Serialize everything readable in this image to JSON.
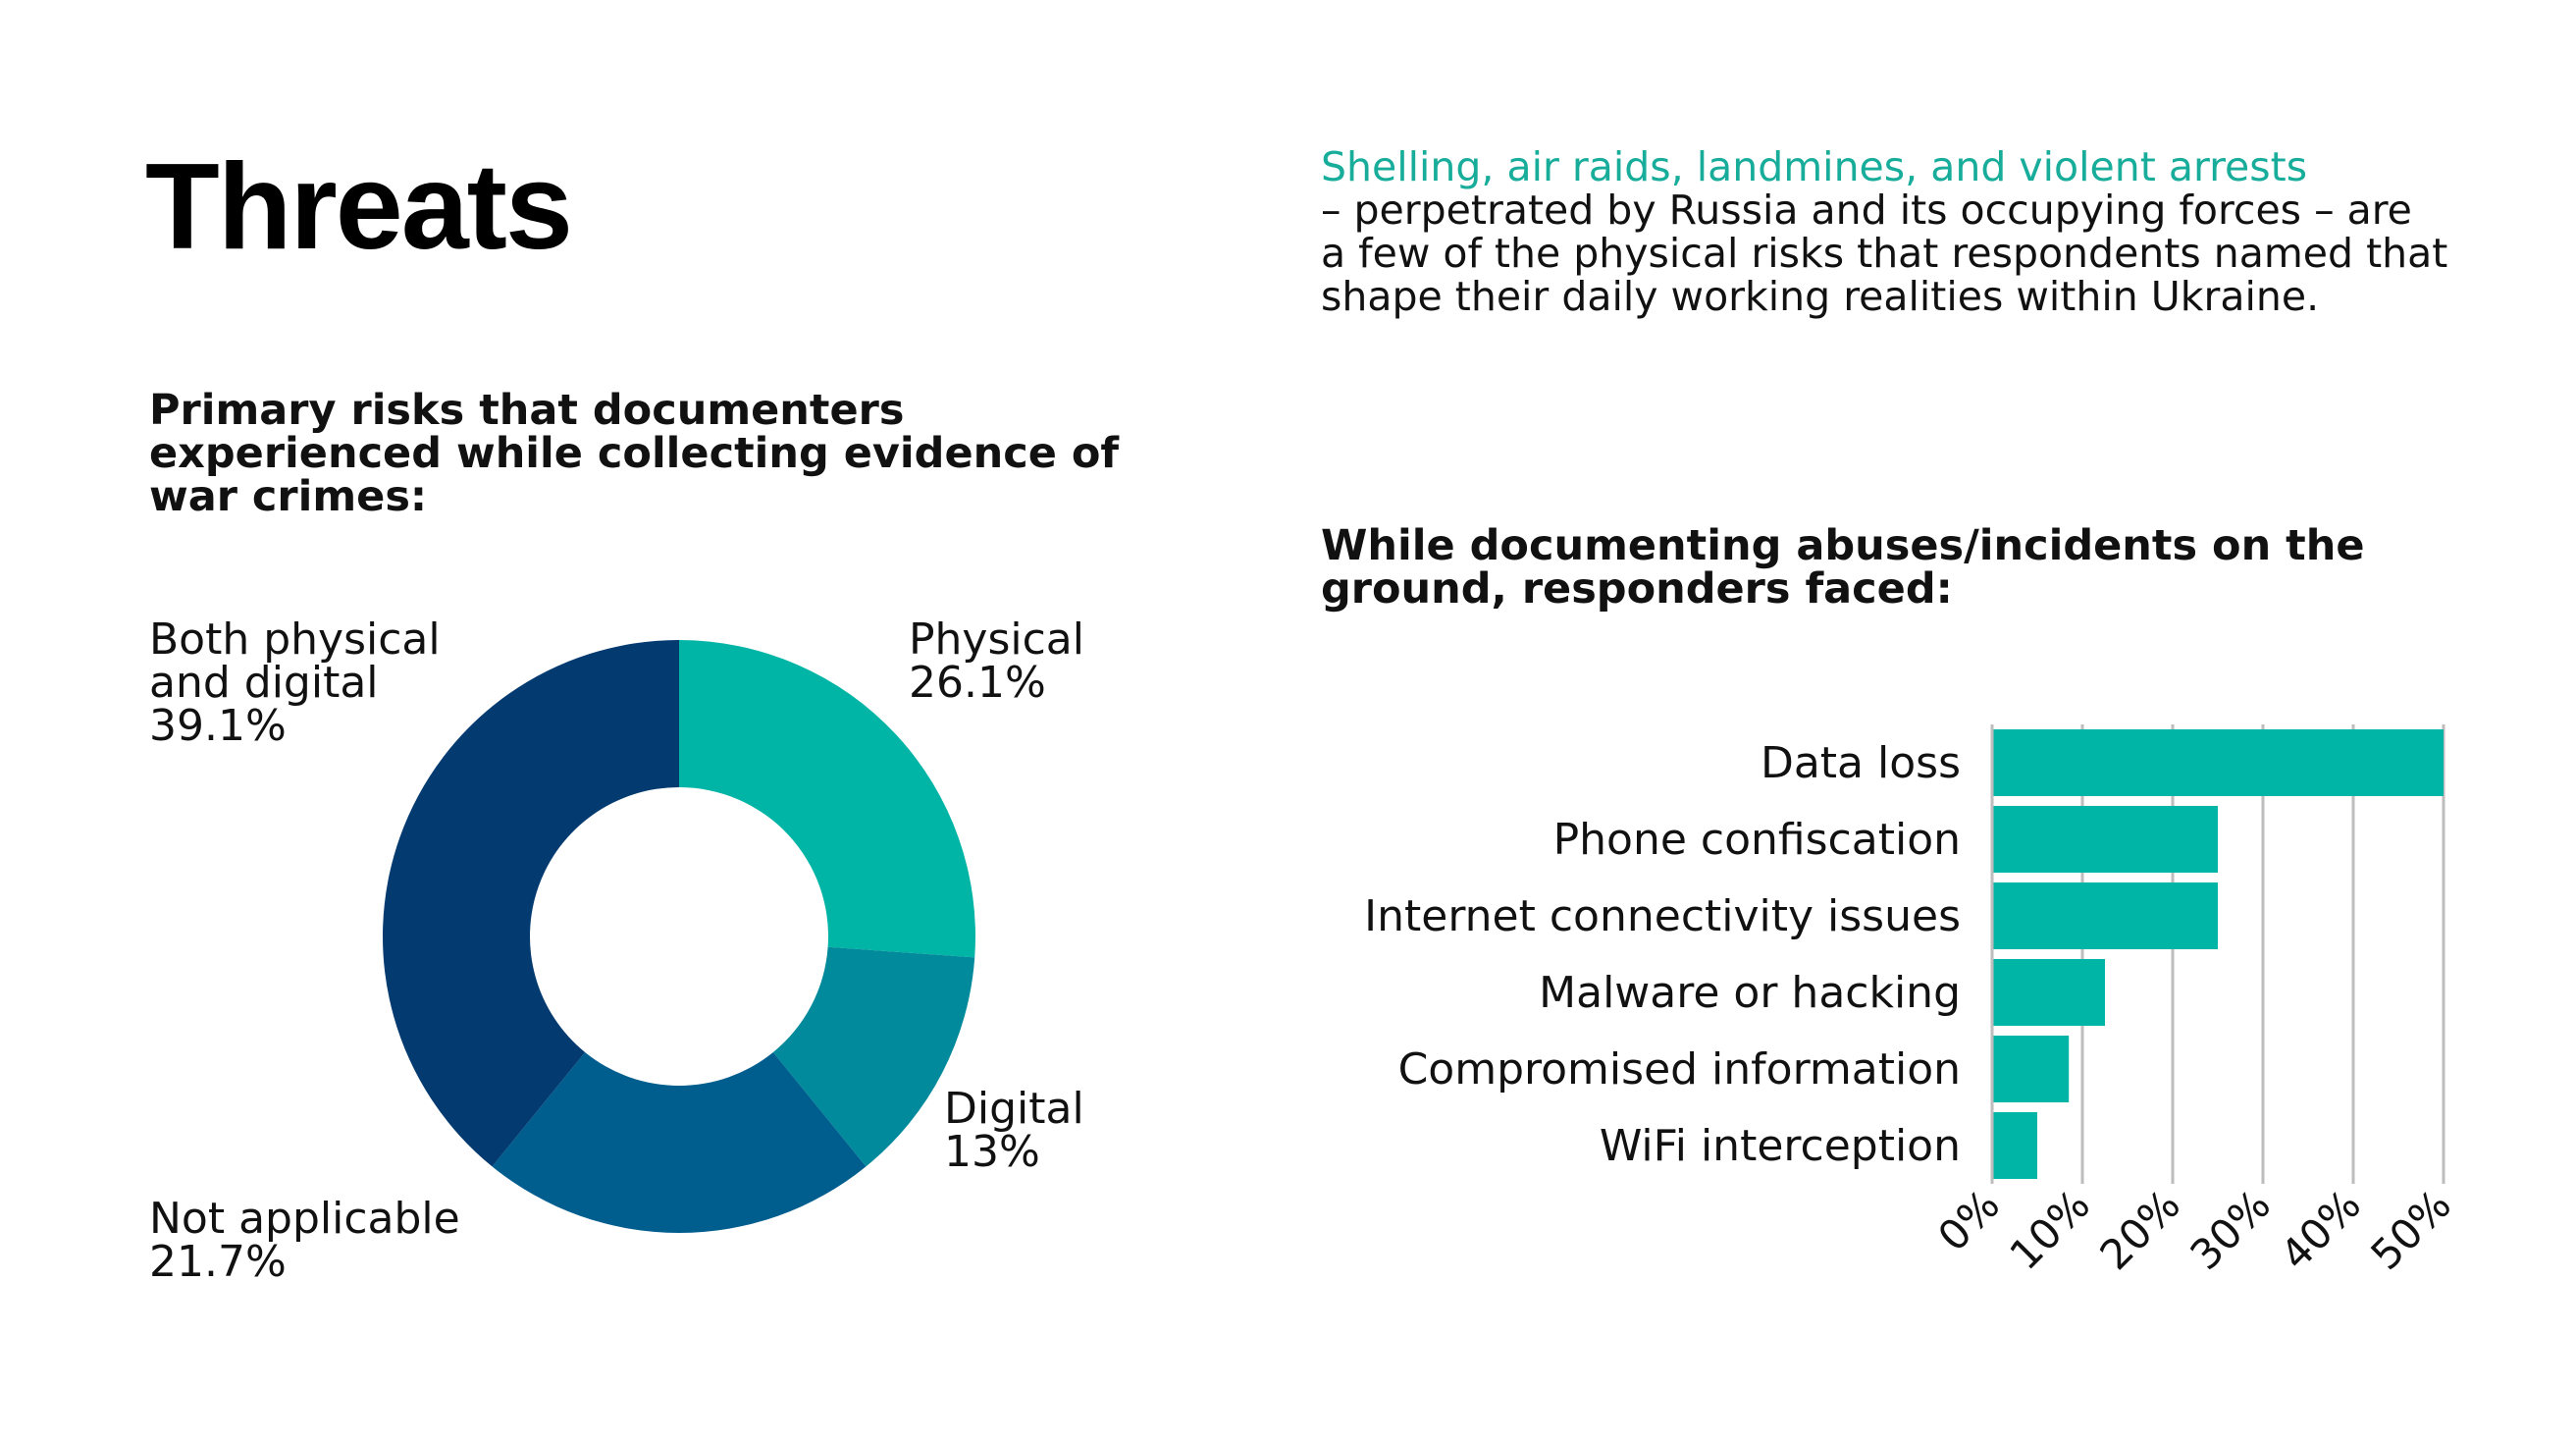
{
  "page": {
    "title": "Threats",
    "intro_highlight": "Shelling, air raids, landmines, and violent arrests",
    "intro_text": "– perpetrated by Russia and its occupying forces – are a few of the physical risks that respondents named that shape their daily working realities within Ukraine."
  },
  "colors": {
    "teal": "#00b5a6",
    "teal_dark": "#008a9c",
    "blue_mid": "#005e8f",
    "navy": "#033a70",
    "bar": "#00b5a6",
    "grid": "#bdbdbd"
  },
  "chart_data": [
    {
      "type": "pie",
      "title": "Primary risks that documenters experienced while collecting evidence of war crimes:",
      "donut": true,
      "slices": [
        {
          "label": "Physical",
          "value": 26.1,
          "display": "26.1%",
          "color": "#00b5a6"
        },
        {
          "label": "Digital",
          "value": 13,
          "display": "13%",
          "color": "#008a9c"
        },
        {
          "label": "Not applicable",
          "value": 21.7,
          "display": "21.7%",
          "color": "#005e8f"
        },
        {
          "label": "Both physical and digital",
          "value": 39.1,
          "display": "39.1%",
          "color": "#033a70"
        }
      ]
    },
    {
      "type": "bar",
      "orientation": "horizontal",
      "title": "While documenting abuses/incidents on the ground, responders faced:",
      "categories": [
        "Data loss",
        "Phone confiscation",
        "Internet connectivity issues",
        "Malware or hacking",
        "Compromised information",
        "WiFi interception"
      ],
      "values": [
        50,
        25,
        25,
        12.5,
        8.5,
        5
      ],
      "xlim": [
        0,
        50
      ],
      "xticks": [
        "0%",
        "10%",
        "20%",
        "30%",
        "40%",
        "50%"
      ],
      "xtick_values": [
        0,
        10,
        20,
        30,
        40,
        50
      ],
      "grid": "vertical"
    }
  ]
}
